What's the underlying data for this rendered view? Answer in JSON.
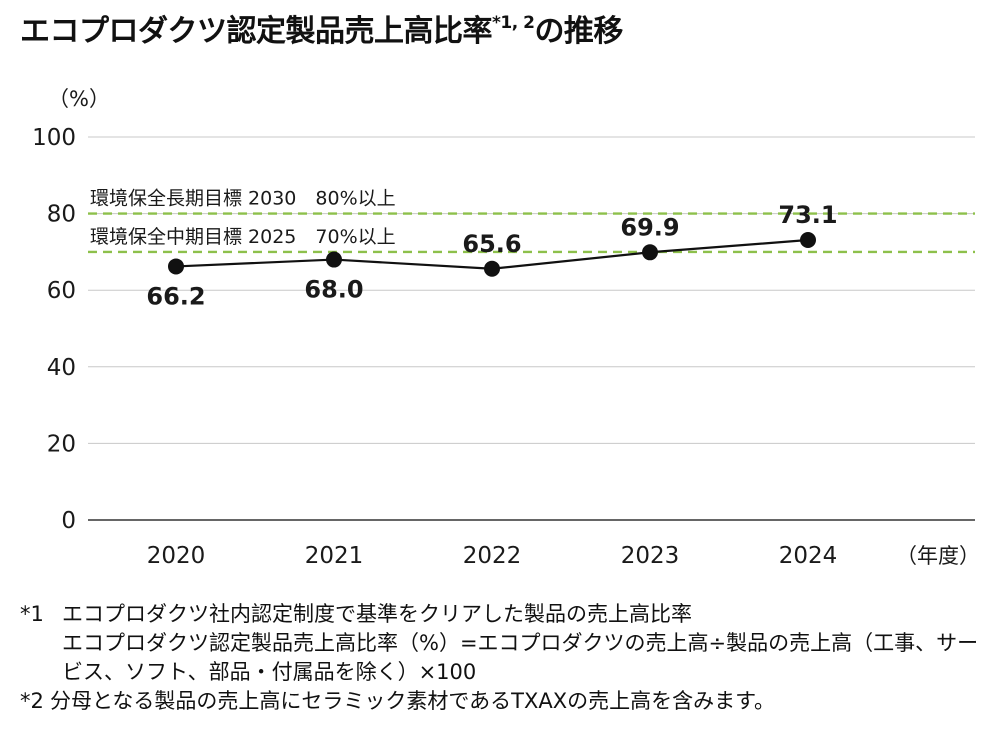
{
  "title": {
    "main": "エコプロダクツ認定製品売上高比率",
    "sup": "*1, 2",
    "tail": "の推移"
  },
  "chart_data": {
    "type": "line",
    "x": [
      "2020",
      "2021",
      "2022",
      "2023",
      "2024"
    ],
    "series": [
      {
        "values": [
          66.2,
          68.0,
          65.6,
          69.9,
          73.1
        ],
        "data_labels": [
          "66.2",
          "68.0",
          "65.6",
          "69.9",
          "73.1"
        ]
      }
    ],
    "ylabel": "（%）",
    "xlabel": "（年度）",
    "ylim": [
      0,
      100
    ],
    "yticks": [
      0,
      20,
      40,
      60,
      80,
      100
    ],
    "grid": true,
    "reference_lines": [
      {
        "value": 80,
        "label": "環境保全長期目標 2030　80%以上",
        "color": "#8dc04b",
        "style": "dashed"
      },
      {
        "value": 70,
        "label": "環境保全中期目標 2025　70%以上",
        "color": "#8dc04b",
        "style": "dashed"
      }
    ],
    "colors": {
      "line": "#111111",
      "grid": "#c8c8c8",
      "axis": "#333333",
      "target": "#8dc04b",
      "text": "#1a1a1a"
    }
  },
  "notes": [
    {
      "mark": "*1",
      "lines": [
        "エコプロダクツ社内認定制度で基準をクリアした製品の売上高比率",
        "エコプロダクツ認定製品売上高比率（%）=エコプロダクツの売上高÷製品の売上高（工事、サービス、ソフト、部品・付属品を除く）×100"
      ]
    },
    {
      "mark": "*2",
      "lines": [
        "分母となる製品の売上高にセラミック素材であるTXAXの売上高を含みます。"
      ]
    }
  ]
}
